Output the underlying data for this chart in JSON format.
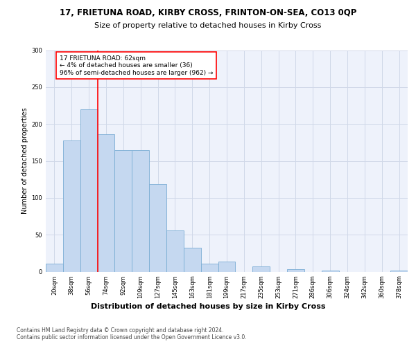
{
  "title1": "17, FRIETUNA ROAD, KIRBY CROSS, FRINTON-ON-SEA, CO13 0QP",
  "title2": "Size of property relative to detached houses in Kirby Cross",
  "xlabel": "Distribution of detached houses by size in Kirby Cross",
  "ylabel": "Number of detached properties",
  "categories": [
    "20sqm",
    "38sqm",
    "56sqm",
    "74sqm",
    "92sqm",
    "109sqm",
    "127sqm",
    "145sqm",
    "163sqm",
    "181sqm",
    "199sqm",
    "217sqm",
    "235sqm",
    "253sqm",
    "271sqm",
    "286sqm",
    "306sqm",
    "324sqm",
    "342sqm",
    "360sqm",
    "378sqm"
  ],
  "values": [
    11,
    178,
    220,
    186,
    165,
    165,
    119,
    56,
    32,
    11,
    14,
    0,
    7,
    0,
    3,
    0,
    1,
    0,
    0,
    0,
    1
  ],
  "bar_color": "#c5d8f0",
  "bar_edge_color": "#7aadd4",
  "vline_color": "red",
  "annotation_text": "17 FRIETUNA ROAD: 62sqm\n← 4% of detached houses are smaller (36)\n96% of semi-detached houses are larger (962) →",
  "annotation_box_color": "white",
  "annotation_box_edge_color": "red",
  "ylim": [
    0,
    300
  ],
  "yticks": [
    0,
    50,
    100,
    150,
    200,
    250,
    300
  ],
  "grid_color": "#d0d8e8",
  "bg_color": "#eef2fb",
  "footer": "Contains HM Land Registry data © Crown copyright and database right 2024.\nContains public sector information licensed under the Open Government Licence v3.0.",
  "title1_fontsize": 8.5,
  "title2_fontsize": 8,
  "xlabel_fontsize": 8,
  "ylabel_fontsize": 7,
  "tick_fontsize": 6,
  "annotation_fontsize": 6.5,
  "footer_fontsize": 5.5
}
